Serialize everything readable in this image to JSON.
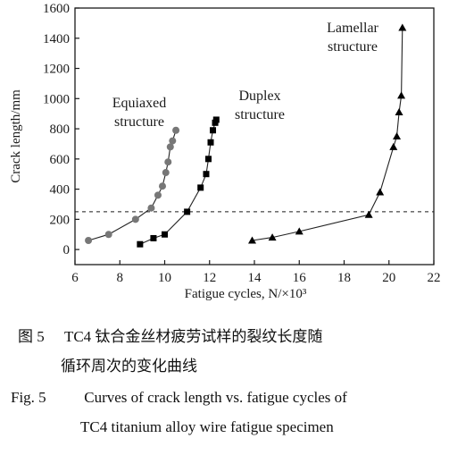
{
  "chart_data": {
    "type": "line",
    "xlabel": "Fatigue cycles, N/×10³",
    "ylabel": "Crack length/mm",
    "xlim": [
      6,
      22
    ],
    "ylim": [
      -100,
      1600
    ],
    "xticks": [
      "6",
      "8",
      "10",
      "12",
      "14",
      "16",
      "18",
      "20",
      "22"
    ],
    "yticks": [
      "0",
      "200",
      "400",
      "600",
      "800",
      "1000",
      "1200",
      "1400",
      "1600"
    ],
    "reference_line_y": 250,
    "series": [
      {
        "name": "Equiaxed structure",
        "marker": "circle",
        "color": "#777777",
        "x": [
          6.6,
          7.5,
          8.7,
          9.4,
          9.7,
          9.9,
          10.05,
          10.15,
          10.25,
          10.35,
          10.5
        ],
        "y": [
          60,
          100,
          200,
          275,
          360,
          420,
          510,
          580,
          680,
          720,
          790
        ]
      },
      {
        "name": "Duplex structure",
        "marker": "square",
        "color": "#000000",
        "x": [
          8.9,
          9.5,
          10.0,
          11.0,
          11.6,
          11.85,
          11.95,
          12.05,
          12.15,
          12.25,
          12.3
        ],
        "y": [
          35,
          75,
          100,
          250,
          410,
          500,
          600,
          710,
          790,
          840,
          860
        ]
      },
      {
        "name": "Lamellar structure",
        "marker": "triangle",
        "color": "#000000",
        "x": [
          13.9,
          14.8,
          16.0,
          19.1,
          19.6,
          20.2,
          20.35,
          20.45,
          20.55,
          20.6
        ],
        "y": [
          60,
          80,
          120,
          230,
          380,
          680,
          750,
          910,
          1020,
          1470
        ]
      }
    ],
    "annotations": [
      {
        "lines": [
          "Equiaxed",
          "structure"
        ]
      },
      {
        "lines": [
          "Duplex",
          "structure"
        ]
      },
      {
        "lines": [
          "Lamellar",
          "structure"
        ]
      }
    ]
  },
  "caption": {
    "cn_label": "图 5",
    "cn_line1": "TC4 钛合金丝材疲劳试样的裂纹长度随",
    "cn_line2": "循环周次的变化曲线",
    "en_label": "Fig. 5",
    "en_line1": "Curves of crack length vs. fatigue cycles of",
    "en_line2": "TC4 titanium alloy wire fatigue specimen"
  }
}
